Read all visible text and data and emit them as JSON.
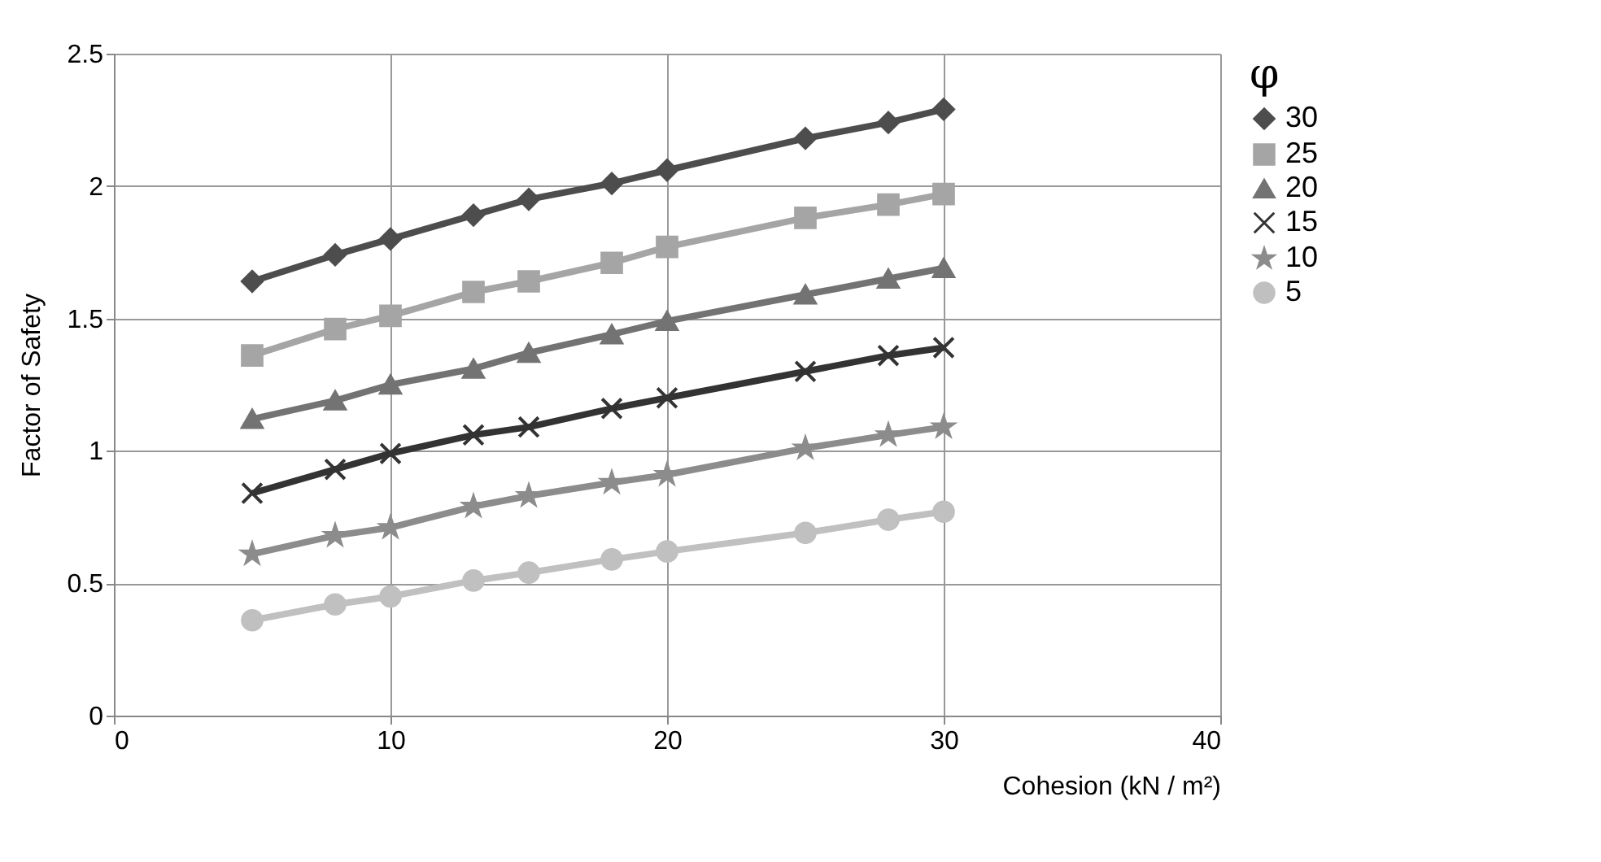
{
  "chart_data": {
    "type": "line",
    "xlabel": "Cohesion (kN / m²)",
    "ylabel": "Factor of Safety",
    "legend_title": "φ",
    "x": [
      5,
      8,
      10,
      13,
      15,
      18,
      20,
      25,
      28,
      30
    ],
    "series": [
      {
        "name": "30",
        "color": "#4d4d4d",
        "marker": "diamond",
        "values": [
          1.64,
          1.74,
          1.8,
          1.89,
          1.95,
          2.01,
          2.06,
          2.18,
          2.24,
          2.29
        ]
      },
      {
        "name": "25",
        "color": "#a5a5a5",
        "marker": "square",
        "values": [
          1.36,
          1.46,
          1.51,
          1.6,
          1.64,
          1.71,
          1.77,
          1.88,
          1.93,
          1.97
        ]
      },
      {
        "name": "20",
        "color": "#737373",
        "marker": "triangle",
        "values": [
          1.12,
          1.19,
          1.25,
          1.31,
          1.37,
          1.44,
          1.49,
          1.59,
          1.65,
          1.69
        ]
      },
      {
        "name": "15",
        "color": "#333333",
        "marker": "cross",
        "values": [
          0.84,
          0.93,
          0.99,
          1.06,
          1.09,
          1.16,
          1.2,
          1.3,
          1.36,
          1.39
        ]
      },
      {
        "name": "10",
        "color": "#8c8c8c",
        "marker": "star",
        "values": [
          0.61,
          0.68,
          0.71,
          0.79,
          0.83,
          0.88,
          0.91,
          1.01,
          1.06,
          1.09
        ]
      },
      {
        "name": "5",
        "color": "#c0c0c0",
        "marker": "circle",
        "values": [
          0.36,
          0.42,
          0.45,
          0.51,
          0.54,
          0.59,
          0.62,
          0.69,
          0.74,
          0.77
        ]
      }
    ],
    "xlim": [
      0,
      40
    ],
    "xticks": [
      0,
      10,
      20,
      30,
      40
    ],
    "ylim": [
      0,
      2.5
    ],
    "yticks": [
      0,
      0.5,
      1,
      1.5,
      2,
      2.5
    ],
    "grid": true,
    "legend": "right"
  }
}
